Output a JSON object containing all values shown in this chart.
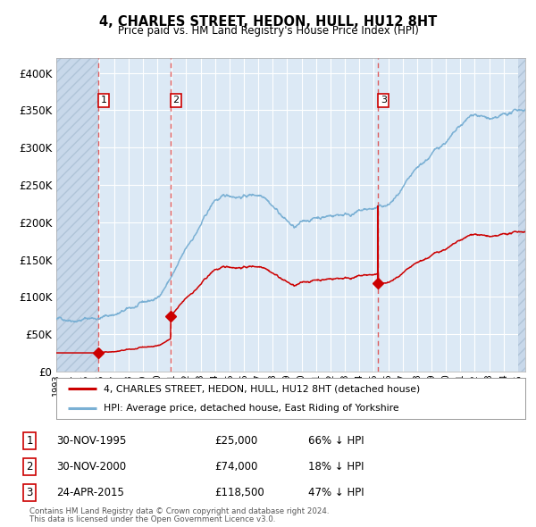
{
  "title": "4, CHARLES STREET, HEDON, HULL, HU12 8HT",
  "subtitle": "Price paid vs. HM Land Registry's House Price Index (HPI)",
  "transactions": [
    {
      "num": 1,
      "date_label": "30-NOV-1995",
      "date_x": 1995.92,
      "price": 25000,
      "pct": "66%",
      "dir": "↓"
    },
    {
      "num": 2,
      "date_label": "30-NOV-2000",
      "date_x": 2000.92,
      "price": 74000,
      "pct": "18%",
      "dir": "↓"
    },
    {
      "num": 3,
      "date_label": "24-APR-2015",
      "date_x": 2015.31,
      "price": 118500,
      "pct": "47%",
      "dir": "↓"
    }
  ],
  "legend_property": "4, CHARLES STREET, HEDON, HULL, HU12 8HT (detached house)",
  "legend_hpi": "HPI: Average price, detached house, East Riding of Yorkshire",
  "footer1": "Contains HM Land Registry data © Crown copyright and database right 2024.",
  "footer2": "This data is licensed under the Open Government Licence v3.0.",
  "property_color": "#cc0000",
  "hpi_color": "#7ab0d4",
  "bg_plot": "#dce9f5",
  "bg_hatched_color": "#c8d8ea",
  "dashed_line_color": "#dd4444",
  "grid_color": "#ffffff",
  "ylim": [
    0,
    420000
  ],
  "xlim": [
    1993.0,
    2025.5
  ],
  "hatch_end": 1995.92,
  "hatch_start_right": 2025.0
}
